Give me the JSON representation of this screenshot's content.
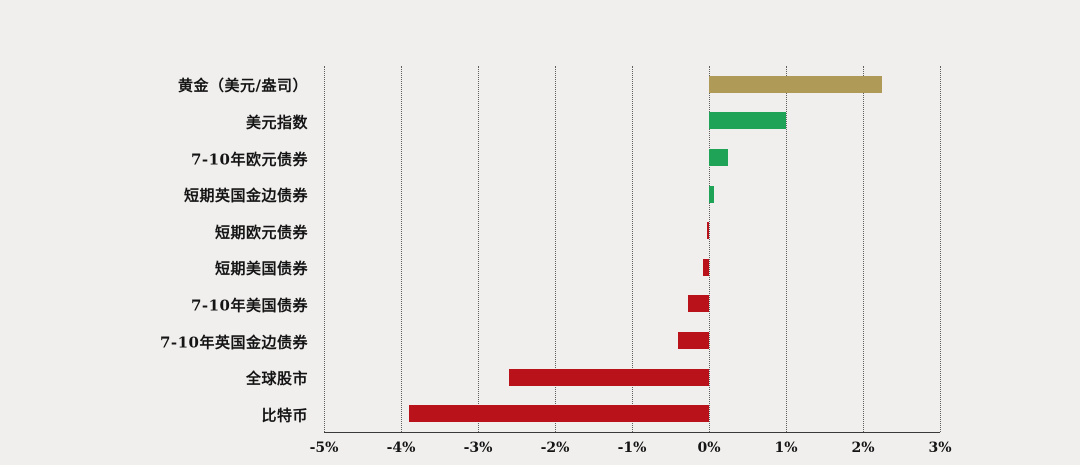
{
  "page": {
    "background_color": "#f1efee"
  },
  "chart_data": {
    "type": "bar",
    "orientation": "horizontal",
    "title": "",
    "categories": [
      "黄金（美元/盎司）",
      "美元指数",
      "7-10年欧元债券",
      "短期英国金边债券",
      "短期欧元债券",
      "短期美国债券",
      "7-10年美国债券",
      "7-10年英国金边债券",
      "全球股市",
      "比特币"
    ],
    "values": [
      2.25,
      1.0,
      0.25,
      0.07,
      -0.03,
      -0.08,
      -0.27,
      -0.4,
      -2.6,
      -3.9
    ],
    "bar_colors": [
      "#b09a58",
      "#1fa356",
      "#1fa356",
      "#1fa356",
      "#b9121b",
      "#b9121b",
      "#b9121b",
      "#b9121b",
      "#b9121b",
      "#b9121b"
    ],
    "positive_color": "#1fa356",
    "negative_color": "#b9121b",
    "gold_color": "#b09a58",
    "xlabel": "",
    "ylabel": "",
    "xlim": [
      -5,
      3
    ],
    "tick_values": [
      -5,
      -4,
      -3,
      -2,
      -1,
      0,
      1,
      2,
      3
    ],
    "tick_labels": [
      "-5%",
      "-4%",
      "-3%",
      "-2%",
      "-1%",
      "0%",
      "1%",
      "2%",
      "3%"
    ],
    "grid": "vertical-dotted",
    "legend": "none",
    "baseline_axis": "bottom-solid"
  }
}
